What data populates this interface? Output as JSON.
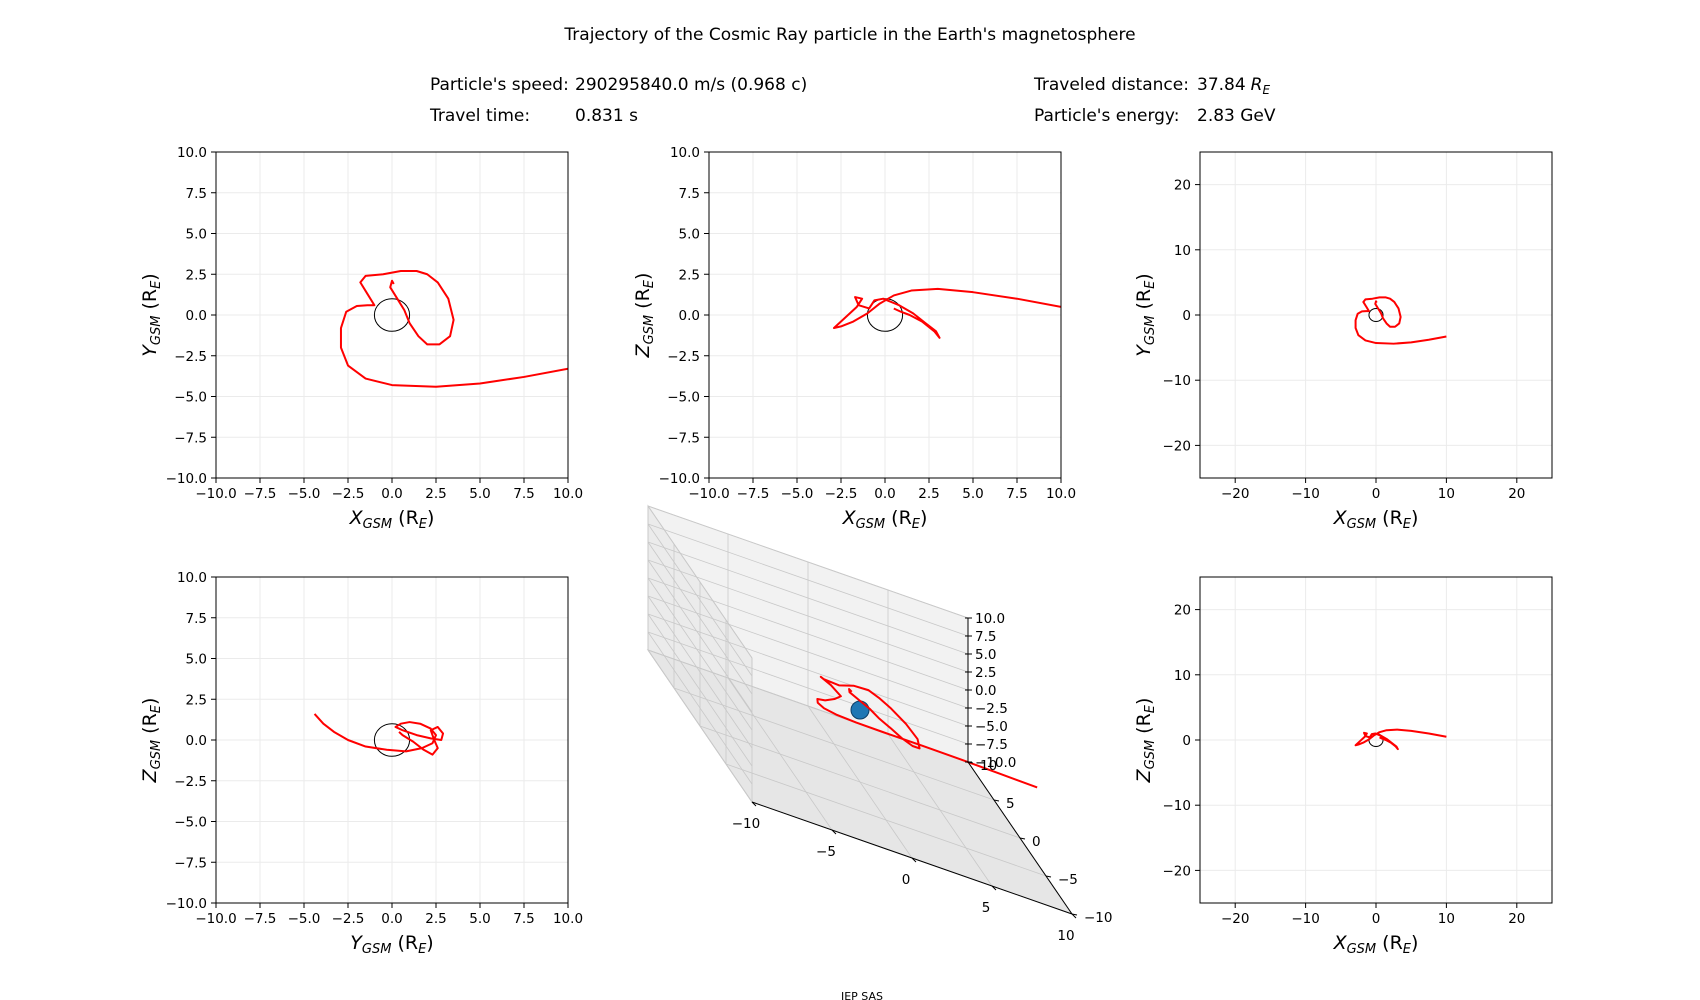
{
  "figure": {
    "title": "Trajectory of the Cosmic Ray particle in the Earth's magnetosphere",
    "footer": "IEP SAS"
  },
  "info": {
    "speed_label": "Particle's speed:",
    "speed_value": "290295840.0 m/s (0.968 c)",
    "time_label": "Travel time:",
    "time_value": "0.831 s",
    "distance_label": "Traveled distance:",
    "distance_value": "37.84",
    "distance_unit_main": "R",
    "distance_unit_sub": "E",
    "energy_label": "Particle's energy:",
    "energy_value": "2.83 GeV"
  },
  "colors": {
    "trajectory": "#ff0000",
    "earth": "#1f77b4",
    "grid": "#ebebeb"
  },
  "chart_data": [
    {
      "id": "xy",
      "type": "line",
      "xlabel_main": "X",
      "xlabel_sub": "GSM",
      "xlabel_tail": " (R",
      "xlabel_unit": "E",
      "xlabel_close": ")",
      "ylabel_main": "Y",
      "ylabel_sub": "GSM",
      "ylabel_tail": " (R",
      "ylabel_unit": "E",
      "ylabel_close": ")",
      "xlim": [
        -10,
        10
      ],
      "ylim": [
        -10,
        10
      ],
      "xticks": [
        "−10.0",
        "−7.5",
        "−5.0",
        "−2.5",
        "0.0",
        "2.5",
        "5.0",
        "7.5",
        "10.0"
      ],
      "yticks": [
        "−10.0",
        "−7.5",
        "−5.0",
        "−2.5",
        "0.0",
        "2.5",
        "5.0",
        "7.5",
        "10.0"
      ],
      "xtick_values": [
        -10,
        -7.5,
        -5,
        -2.5,
        0,
        2.5,
        5,
        7.5,
        10
      ],
      "ytick_values": [
        -10,
        -7.5,
        -5,
        -2.5,
        0,
        2.5,
        5,
        7.5,
        10
      ],
      "earth_radius": 1,
      "series": [
        {
          "x": [
            10,
            7.5,
            5,
            2.5,
            0,
            -1.5,
            -2.5,
            -2.9,
            -2.9,
            -2.6,
            -2,
            -1.4,
            -1,
            -1.4,
            -1.8,
            -1.5,
            -0.5,
            0.5,
            1.4,
            2,
            2.6,
            3.2,
            3.5,
            3.3,
            2.7,
            2,
            1.5,
            1,
            0.7,
            0.3,
            -0.1,
            0,
            0.1
          ],
          "y": [
            -3.3,
            -3.8,
            -4.2,
            -4.4,
            -4.3,
            -3.9,
            -3.1,
            -2,
            -0.8,
            0.2,
            0.55,
            0.6,
            0.6,
            1.3,
            2,
            2.4,
            2.5,
            2.7,
            2.7,
            2.5,
            2,
            1,
            -0.3,
            -1.3,
            -1.8,
            -1.8,
            -1.3,
            -0.5,
            0.3,
            1,
            1.7,
            2.1,
            1.9
          ]
        }
      ]
    },
    {
      "id": "xz",
      "type": "line",
      "xlabel_main": "X",
      "xlabel_sub": "GSM",
      "xlabel_tail": " (R",
      "xlabel_unit": "E",
      "xlabel_close": ")",
      "ylabel_main": "Z",
      "ylabel_sub": "GSM",
      "ylabel_tail": " (R",
      "ylabel_unit": "E",
      "ylabel_close": ")",
      "xlim": [
        -10,
        10
      ],
      "ylim": [
        -10,
        10
      ],
      "xticks": [
        "−10.0",
        "−7.5",
        "−5.0",
        "−2.5",
        "0.0",
        "2.5",
        "5.0",
        "7.5",
        "10.0"
      ],
      "yticks": [
        "−10.0",
        "−7.5",
        "−5.0",
        "−2.5",
        "0.0",
        "2.5",
        "5.0",
        "7.5",
        "10.0"
      ],
      "xtick_values": [
        -10,
        -7.5,
        -5,
        -2.5,
        0,
        2.5,
        5,
        7.5,
        10
      ],
      "ytick_values": [
        -10,
        -7.5,
        -5,
        -2.5,
        0,
        2.5,
        5,
        7.5,
        10
      ],
      "earth_radius": 1,
      "series": [
        {
          "x": [
            10,
            7.5,
            5,
            3,
            1.5,
            0.5,
            -0.3,
            -1,
            -1.8,
            -2.5,
            -2.9,
            -2.3,
            -1.6,
            -1.3,
            -1.7,
            -1.5,
            -0.9,
            -0.6,
            -0.1,
            0.8,
            1.6,
            2.3,
            2.9,
            3.1,
            2.8,
            2.1,
            1.4,
            0.9,
            0.5
          ],
          "y": [
            0.5,
            1,
            1.4,
            1.6,
            1.5,
            1.2,
            0.7,
            0.1,
            -0.4,
            -0.7,
            -0.8,
            -0.2,
            0.5,
            1,
            1.1,
            0.6,
            0.4,
            0.9,
            1,
            0.6,
            0.1,
            -0.5,
            -1,
            -1.4,
            -1,
            -0.4,
            0,
            0.2,
            0.4
          ]
        }
      ]
    },
    {
      "id": "xy_zoom",
      "type": "line",
      "xlabel_main": "X",
      "xlabel_sub": "GSM",
      "xlabel_tail": " (R",
      "xlabel_unit": "E",
      "xlabel_close": ")",
      "ylabel_main": "Y",
      "ylabel_sub": "GSM",
      "ylabel_tail": " (R",
      "ylabel_unit": "E",
      "ylabel_close": ")",
      "xlim": [
        -25,
        25
      ],
      "ylim": [
        -25,
        25
      ],
      "xticks": [
        "−20",
        "−10",
        "0",
        "10",
        "20"
      ],
      "yticks": [
        "−20",
        "−10",
        "0",
        "10",
        "20"
      ],
      "xtick_values": [
        -20,
        -10,
        0,
        10,
        20
      ],
      "ytick_values": [
        -20,
        -10,
        0,
        10,
        20
      ],
      "earth_radius": 1,
      "series": [
        {
          "x": [
            10,
            7.5,
            5,
            2.5,
            0,
            -1.5,
            -2.5,
            -2.9,
            -2.9,
            -2.6,
            -2,
            -1.4,
            -1,
            -1.4,
            -1.8,
            -1.5,
            -0.5,
            0.5,
            1.4,
            2,
            2.6,
            3.2,
            3.5,
            3.3,
            2.7,
            2,
            1.5,
            1,
            0.7,
            0.3,
            -0.1,
            0,
            0.1
          ],
          "y": [
            -3.3,
            -3.8,
            -4.2,
            -4.4,
            -4.3,
            -3.9,
            -3.1,
            -2,
            -0.8,
            0.2,
            0.55,
            0.6,
            0.6,
            1.3,
            2,
            2.4,
            2.5,
            2.7,
            2.7,
            2.5,
            2,
            1,
            -0.3,
            -1.3,
            -1.8,
            -1.8,
            -1.3,
            -0.5,
            0.3,
            1,
            1.7,
            2.1,
            1.9
          ]
        }
      ]
    },
    {
      "id": "yz",
      "type": "line",
      "xlabel_main": "Y",
      "xlabel_sub": "GSM",
      "xlabel_tail": " (R",
      "xlabel_unit": "E",
      "xlabel_close": ")",
      "ylabel_main": "Z",
      "ylabel_sub": "GSM",
      "ylabel_tail": " (R",
      "ylabel_unit": "E",
      "ylabel_close": ")",
      "xlim": [
        -10,
        10
      ],
      "ylim": [
        -10,
        10
      ],
      "xticks": [
        "−10.0",
        "−7.5",
        "−5.0",
        "−2.5",
        "0.0",
        "2.5",
        "5.0",
        "7.5",
        "10.0"
      ],
      "yticks": [
        "−10.0",
        "−7.5",
        "−5.0",
        "−2.5",
        "0.0",
        "2.5",
        "5.0",
        "7.5",
        "10.0"
      ],
      "xtick_values": [
        -10,
        -7.5,
        -5,
        -2.5,
        0,
        2.5,
        5,
        7.5,
        10
      ],
      "ytick_values": [
        -10,
        -7.5,
        -5,
        -2.5,
        0,
        2.5,
        5,
        7.5,
        10
      ],
      "earth_radius": 1,
      "series": [
        {
          "x": [
            -4.4,
            -3.9,
            -3.3,
            -2.5,
            -1.5,
            -0.3,
            0.8,
            1.7,
            2.3,
            2.5,
            2.2,
            1.6,
            1,
            0.5,
            0.2,
            0.6,
            1.4,
            2.2,
            2.8,
            2.9,
            2.6,
            2.2,
            2.4,
            2.6,
            2.3,
            1.8,
            1.2,
            0.6,
            0.4
          ],
          "y": [
            1.6,
            1,
            0.5,
            0,
            -0.4,
            -0.6,
            -0.7,
            -0.5,
            -0.2,
            0.3,
            0.7,
            1,
            1.1,
            1,
            0.8,
            0.6,
            0.3,
            0.1,
            0,
            0.4,
            0.8,
            0.6,
            0,
            -0.5,
            -0.9,
            -0.6,
            -0.1,
            0.3,
            0.5
          ]
        }
      ]
    },
    {
      "id": "xyz_3d",
      "type": "line",
      "xticks": [
        "−10",
        "−5",
        "0",
        "5",
        "10"
      ],
      "yticks": [
        "−10",
        "−5",
        "0",
        "5",
        "10"
      ],
      "zticks": [
        "10.0",
        "7.5",
        "5.0",
        "2.5",
        "0.0",
        "−2.5",
        "−5.0",
        "−7.5",
        "−10.0"
      ],
      "xlim": [
        -10,
        10
      ],
      "ylim": [
        -10,
        10
      ],
      "zlim": [
        -10,
        10
      ],
      "earth_radius": 1,
      "series": [
        {
          "x": [
            10,
            7.5,
            5,
            2.5,
            0,
            -1.5,
            -2.5,
            -2.9,
            -2.9,
            -2.6,
            -2,
            -1.4,
            -1,
            -1.4,
            -1.8,
            -1.5,
            -0.5,
            0.5,
            1.4,
            2,
            2.6,
            3.2,
            3.5,
            3.3,
            2.7,
            2,
            1.5,
            1,
            0.7,
            0.3,
            -0.1,
            0,
            0.1
          ],
          "y": [
            -3.3,
            -3.8,
            -4.2,
            -4.4,
            -4.3,
            -3.9,
            -3.1,
            -2,
            -0.8,
            0.2,
            0.55,
            0.6,
            0.6,
            1.3,
            2,
            2.4,
            2.5,
            2.7,
            2.7,
            2.5,
            2,
            1,
            -0.3,
            -1.3,
            -1.8,
            -1.8,
            -1.3,
            -0.5,
            0.3,
            1,
            1.7,
            2.1,
            1.9
          ],
          "z": [
            0.5,
            1,
            1.4,
            1.6,
            1.5,
            1.2,
            0.7,
            0.1,
            -0.4,
            -0.7,
            -0.8,
            -0.2,
            0.5,
            1,
            1.1,
            0.6,
            0.4,
            0.9,
            1,
            0.6,
            0.1,
            -0.5,
            -1,
            -1.4,
            -1,
            -0.4,
            0,
            0.2,
            0.4,
            0.5,
            0.6,
            0.7,
            0.6
          ]
        }
      ]
    },
    {
      "id": "xz_zoom",
      "type": "line",
      "xlabel_main": "X",
      "xlabel_sub": "GSM",
      "xlabel_tail": " (R",
      "xlabel_unit": "E",
      "xlabel_close": ")",
      "ylabel_main": "Z",
      "ylabel_sub": "GSM",
      "ylabel_tail": " (R",
      "ylabel_unit": "E",
      "ylabel_close": ")",
      "xlim": [
        -25,
        25
      ],
      "ylim": [
        -25,
        25
      ],
      "xticks": [
        "−20",
        "−10",
        "0",
        "10",
        "20"
      ],
      "yticks": [
        "−20",
        "−10",
        "0",
        "10",
        "20"
      ],
      "xtick_values": [
        -20,
        -10,
        0,
        10,
        20
      ],
      "ytick_values": [
        -20,
        -10,
        0,
        10,
        20
      ],
      "earth_radius": 1,
      "series": [
        {
          "x": [
            10,
            7.5,
            5,
            3,
            1.5,
            0.5,
            -0.3,
            -1,
            -1.8,
            -2.5,
            -2.9,
            -2.3,
            -1.6,
            -1.3,
            -1.7,
            -1.5,
            -0.9,
            -0.6,
            -0.1,
            0.8,
            1.6,
            2.3,
            2.9,
            3.1,
            2.8,
            2.1,
            1.4,
            0.9,
            0.5
          ],
          "y": [
            0.5,
            1,
            1.4,
            1.6,
            1.5,
            1.2,
            0.7,
            0.1,
            -0.4,
            -0.7,
            -0.8,
            -0.2,
            0.5,
            1,
            1.1,
            0.6,
            0.4,
            0.9,
            1,
            0.6,
            0.1,
            -0.5,
            -1,
            -1.4,
            -1,
            -0.4,
            0,
            0.2,
            0.4
          ]
        }
      ]
    }
  ]
}
